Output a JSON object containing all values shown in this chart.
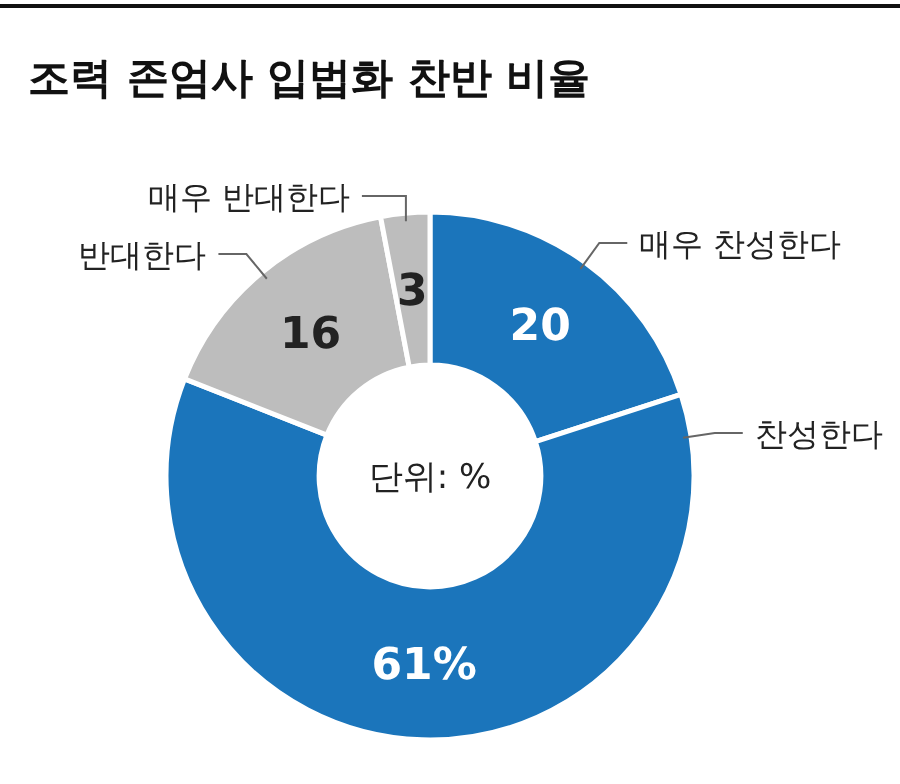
{
  "chart_data": {
    "type": "donut",
    "title": "조력 존엄사 입법화 찬반 비율",
    "categories": [
      "매우 찬성한다",
      "찬성한다",
      "반대한다",
      "매우 반대한다"
    ],
    "values": [
      20,
      61,
      16,
      3
    ],
    "colors": [
      "#1b75bb",
      "#1b75bb",
      "#bdbdbd",
      "#bdbdbd"
    ],
    "value_labels": [
      "20",
      "61%",
      "16",
      "3"
    ],
    "annotations": [
      "단위: %"
    ]
  }
}
